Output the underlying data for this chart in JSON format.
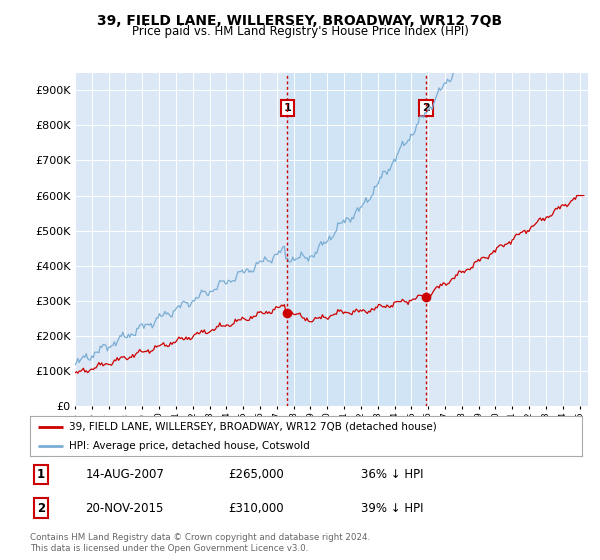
{
  "title": "39, FIELD LANE, WILLERSEY, BROADWAY, WR12 7QB",
  "subtitle": "Price paid vs. HM Land Registry's House Price Index (HPI)",
  "ytick_values": [
    0,
    100000,
    200000,
    300000,
    400000,
    500000,
    600000,
    700000,
    800000,
    900000
  ],
  "ylim": [
    0,
    950000
  ],
  "sale1_date": "14-AUG-2007",
  "sale1_price": 265000,
  "sale1_pct": "36% ↓ HPI",
  "sale2_date": "20-NOV-2015",
  "sale2_price": 310000,
  "sale2_pct": "39% ↓ HPI",
  "sale1_x": 2007.625,
  "sale2_x": 2015.875,
  "red_color": "#cc0000",
  "blue_color": "#7aadd4",
  "shade_color": "#d0e4f5",
  "legend_label_red": "39, FIELD LANE, WILLERSEY, BROADWAY, WR12 7QB (detached house)",
  "legend_label_blue": "HPI: Average price, detached house, Cotswold",
  "footer": "Contains HM Land Registry data © Crown copyright and database right 2024.\nThis data is licensed under the Open Government Licence v3.0.",
  "plot_bg_color": "#dce8f5"
}
